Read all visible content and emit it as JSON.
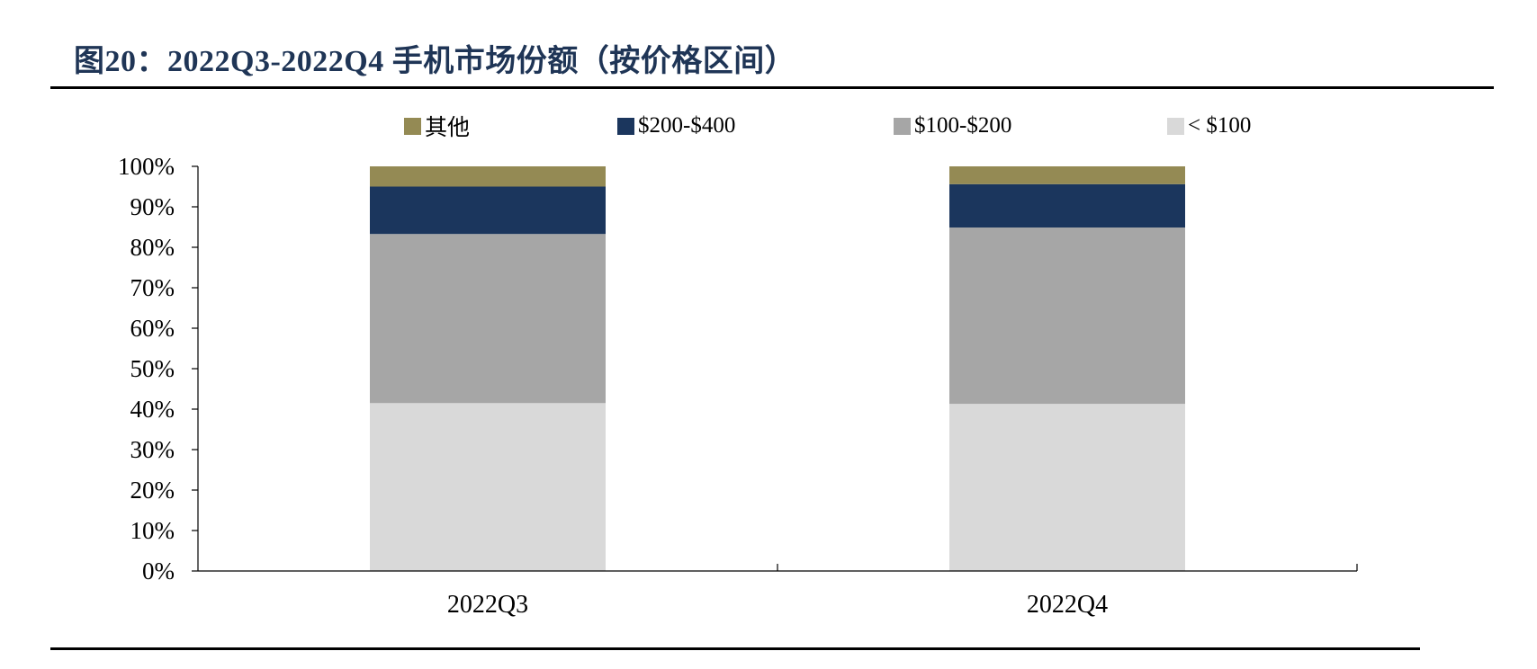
{
  "figure": {
    "title": "图20：2022Q3-2022Q4 手机市场份额（按价格区间）"
  },
  "chart_data": {
    "type": "bar",
    "stacked": true,
    "title": "",
    "xlabel": "",
    "ylabel": "",
    "categories": [
      "2022Q3",
      "2022Q4"
    ],
    "ylim": [
      0,
      100
    ],
    "yticks": [
      0,
      10,
      20,
      30,
      40,
      50,
      60,
      70,
      80,
      90,
      100
    ],
    "ytick_labels": [
      "0%",
      "10%",
      "20%",
      "30%",
      "40%",
      "50%",
      "60%",
      "70%",
      "80%",
      "90%",
      "100%"
    ],
    "legend_position": "top",
    "grid": false,
    "series": [
      {
        "name": "< $100",
        "values": [
          41.5,
          41.3
        ],
        "color": "#d9d9d9"
      },
      {
        "name": "$100-$200",
        "values": [
          41.8,
          43.6
        ],
        "color": "#a6a6a6"
      },
      {
        "name": "$200-$400",
        "values": [
          11.7,
          10.7
        ],
        "color": "#1b365d"
      },
      {
        "name": "其他",
        "values": [
          5.0,
          4.4
        ],
        "color": "#948a54"
      }
    ],
    "legend_order": [
      "其他",
      "$200-$400",
      "$100-$200",
      "< $100"
    ]
  }
}
